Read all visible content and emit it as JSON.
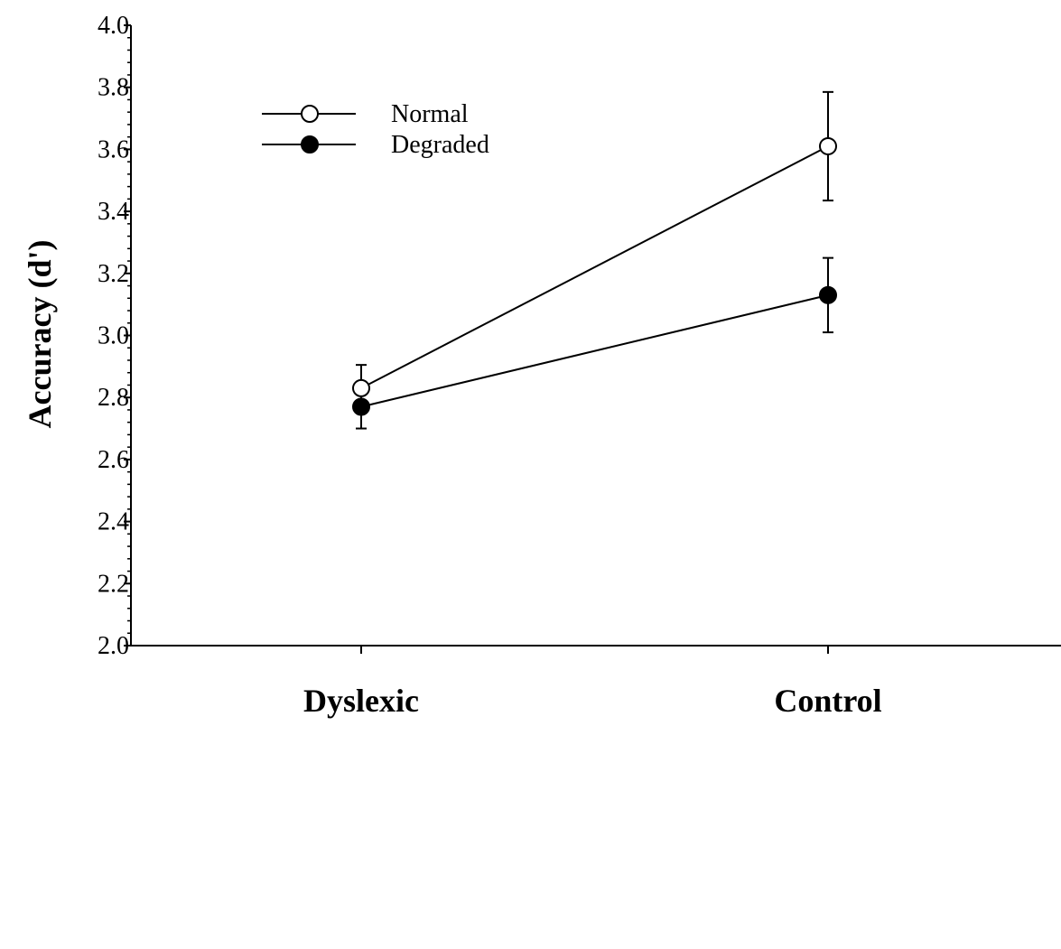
{
  "chart_data": {
    "type": "line",
    "ylabel": "Accuracy (d')",
    "xlabel": "",
    "title": "",
    "categories": [
      "Dyslexic",
      "Control"
    ],
    "ylim": [
      2.0,
      4.0
    ],
    "yticks": [
      "2.0",
      "2.2",
      "2.4",
      "2.6",
      "2.8",
      "3.0",
      "3.2",
      "3.4",
      "3.6",
      "3.8",
      "4.0"
    ],
    "grid": false,
    "legend_position": "top-left",
    "series": [
      {
        "name": "Normal",
        "marker": "open-circle",
        "values": [
          2.83,
          3.61
        ],
        "error": [
          0.075,
          0.175
        ]
      },
      {
        "name": "Degraded",
        "marker": "filled-circle",
        "values": [
          2.77,
          3.13
        ],
        "error": [
          0.07,
          0.12
        ]
      }
    ]
  }
}
